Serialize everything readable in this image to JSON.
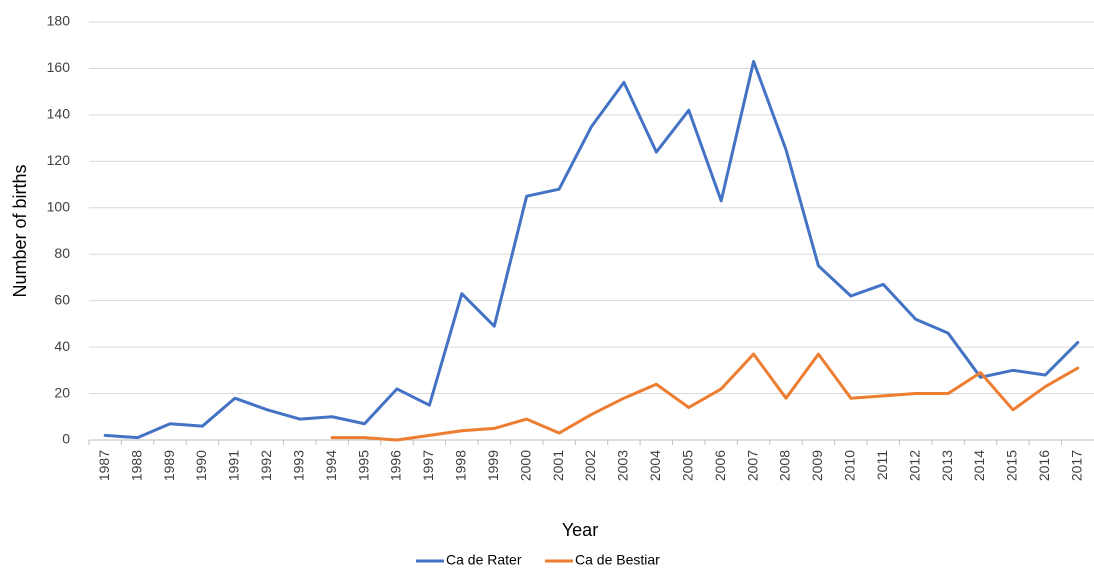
{
  "chart_data": {
    "type": "line",
    "x_label": "Year",
    "y_label": "Number of births",
    "categories": [
      "1987",
      "1988",
      "1989",
      "1990",
      "1991",
      "1992",
      "1993",
      "1994",
      "1995",
      "1996",
      "1997",
      "1998",
      "1999",
      "2000",
      "2001",
      "2002",
      "2003",
      "2004",
      "2005",
      "2006",
      "2007",
      "2008",
      "2009",
      "2010",
      "2011",
      "2012",
      "2013",
      "2014",
      "2015",
      "2016",
      "2017"
    ],
    "series": [
      {
        "name": "Ca de Rater",
        "color": "#4472c4",
        "values": [
          2,
          1,
          7,
          6,
          18,
          13,
          9,
          10,
          7,
          22,
          15,
          63,
          49,
          105,
          108,
          135,
          154,
          124,
          142,
          103,
          163,
          125,
          75,
          62,
          67,
          52,
          46,
          27,
          30,
          28,
          42
        ]
      },
      {
        "name": "Ca de Bestiar",
        "color": "#ed7d31",
        "values": [
          null,
          null,
          null,
          null,
          null,
          null,
          null,
          1,
          1,
          0,
          2,
          4,
          5,
          9,
          3,
          11,
          18,
          24,
          14,
          22,
          37,
          18,
          37,
          18,
          19,
          20,
          20,
          29,
          13,
          23,
          31
        ]
      }
    ],
    "ylim": [
      0,
      180
    ],
    "yticks": [
      0,
      20,
      40,
      60,
      80,
      100,
      120,
      140,
      160,
      180
    ],
    "grid": true,
    "legend": "bottom"
  }
}
